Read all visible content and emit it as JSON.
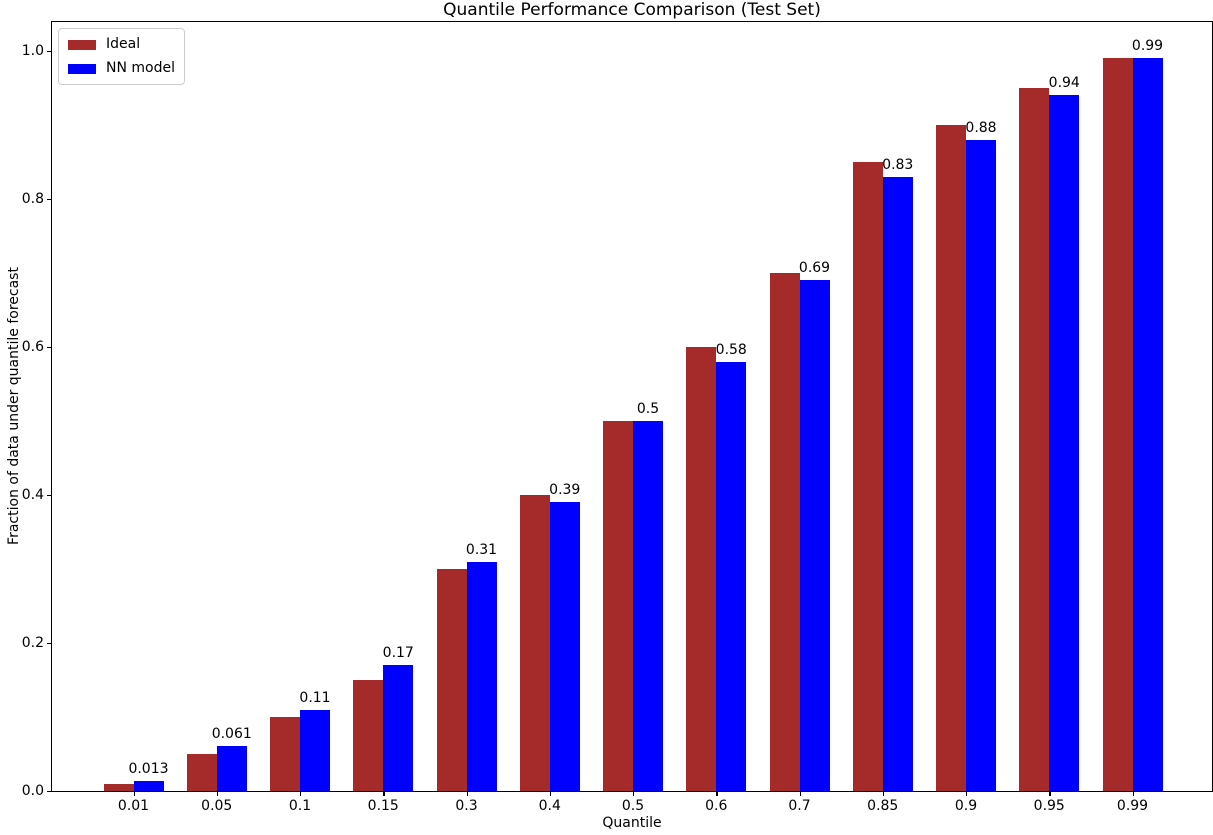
{
  "chart_data": {
    "type": "bar",
    "title": "Quantile Performance Comparison (Test Set)",
    "xlabel": "Quantile",
    "ylabel": "Fraction of data under quantile forecast",
    "categories": [
      "0.01",
      "0.05",
      "0.1",
      "0.15",
      "0.3",
      "0.4",
      "0.5",
      "0.6",
      "0.7",
      "0.85",
      "0.9",
      "0.95",
      "0.99"
    ],
    "series": [
      {
        "name": "Ideal",
        "color": "#a52a2a",
        "values": [
          0.01,
          0.05,
          0.1,
          0.15,
          0.3,
          0.4,
          0.5,
          0.6,
          0.7,
          0.85,
          0.9,
          0.95,
          0.99
        ]
      },
      {
        "name": "NN model",
        "color": "#0000ff",
        "values": [
          0.013,
          0.061,
          0.11,
          0.17,
          0.31,
          0.39,
          0.5,
          0.58,
          0.69,
          0.83,
          0.88,
          0.94,
          0.99
        ],
        "bar_labels": [
          "0.013",
          "0.061",
          "0.11",
          "0.17",
          "0.31",
          "0.39",
          "0.5",
          "0.58",
          "0.69",
          "0.83",
          "0.88",
          "0.94",
          "0.99"
        ]
      }
    ],
    "yticks": [
      0.0,
      0.2,
      0.4,
      0.6,
      0.8,
      1.0
    ],
    "ytick_labels": [
      "0.0",
      "0.2",
      "0.4",
      "0.6",
      "0.8",
      "1.0"
    ],
    "ylim": [
      0,
      1.04
    ],
    "grid": false,
    "legend": {
      "position": "upper left",
      "entries": [
        "Ideal",
        "NN model"
      ]
    },
    "colors": {
      "background": "#ffffff",
      "axis": "#000000",
      "text": "#000000",
      "legend_border": "#cccccc"
    }
  }
}
